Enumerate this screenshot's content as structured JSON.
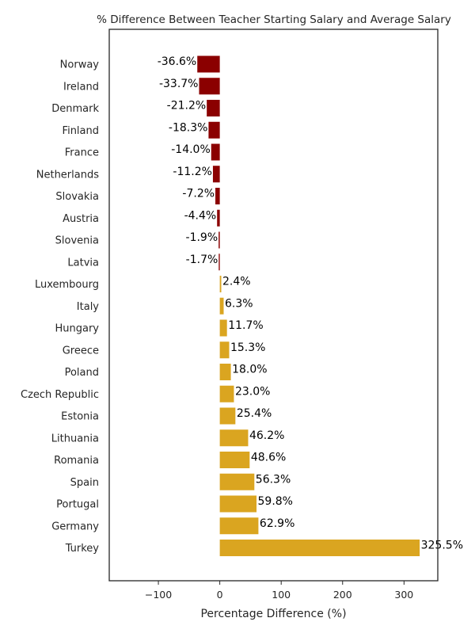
{
  "chart_data": {
    "type": "bar",
    "orientation": "horizontal",
    "title": "% Difference Between Teacher Starting Salary and Average Salary",
    "xlabel": "Percentage Difference (%)",
    "ylabel": "",
    "xlim": [
      -180,
      355
    ],
    "xticks": [
      -100,
      0,
      100,
      200,
      300
    ],
    "xtick_labels": [
      "−100",
      "0",
      "100",
      "200",
      "300"
    ],
    "grid": false,
    "categories": [
      "Norway",
      "Ireland",
      "Denmark",
      "Finland",
      "France",
      "Netherlands",
      "Slovakia",
      "Austria",
      "Slovenia",
      "Latvia",
      "Luxembourg",
      "Italy",
      "Hungary",
      "Greece",
      "Poland",
      "Czech Republic",
      "Estonia",
      "Lithuania",
      "Romania",
      "Spain",
      "Portugal",
      "Germany",
      "Turkey"
    ],
    "values": [
      -36.6,
      -33.7,
      -21.2,
      -18.3,
      -14.0,
      -11.2,
      -7.2,
      -4.4,
      -1.9,
      -1.7,
      2.4,
      6.3,
      11.7,
      15.3,
      18.0,
      23.0,
      25.4,
      46.2,
      48.6,
      56.3,
      59.8,
      62.9,
      325.5
    ],
    "value_labels": [
      "-36.6%",
      "-33.7%",
      "-21.2%",
      "-18.3%",
      "-14.0%",
      "-11.2%",
      "-7.2%",
      "-4.4%",
      "-1.9%",
      "-1.7%",
      "2.4%",
      "6.3%",
      "11.7%",
      "15.3%",
      "18.0%",
      "23.0%",
      "25.4%",
      "46.2%",
      "48.6%",
      "56.3%",
      "59.8%",
      "62.9%",
      "325.5%"
    ],
    "colors": {
      "negative": "#8b0000",
      "positive": "#daa520"
    }
  }
}
